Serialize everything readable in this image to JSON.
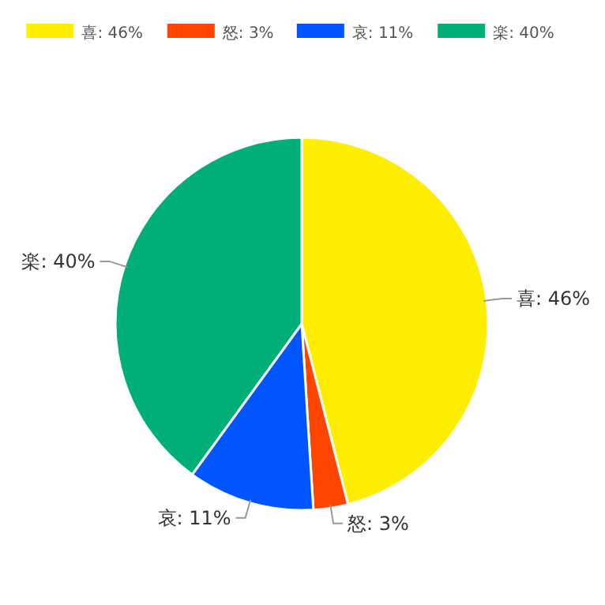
{
  "chart_data": {
    "type": "pie",
    "categories": [
      "喜: 46%",
      "怒: 3%",
      "哀: 11%",
      "楽: 40%"
    ],
    "values": [
      46,
      3,
      11,
      40
    ],
    "colors": [
      "#ffee00",
      "#ff4500",
      "#0055ff",
      "#00af78"
    ],
    "legend": "top"
  }
}
